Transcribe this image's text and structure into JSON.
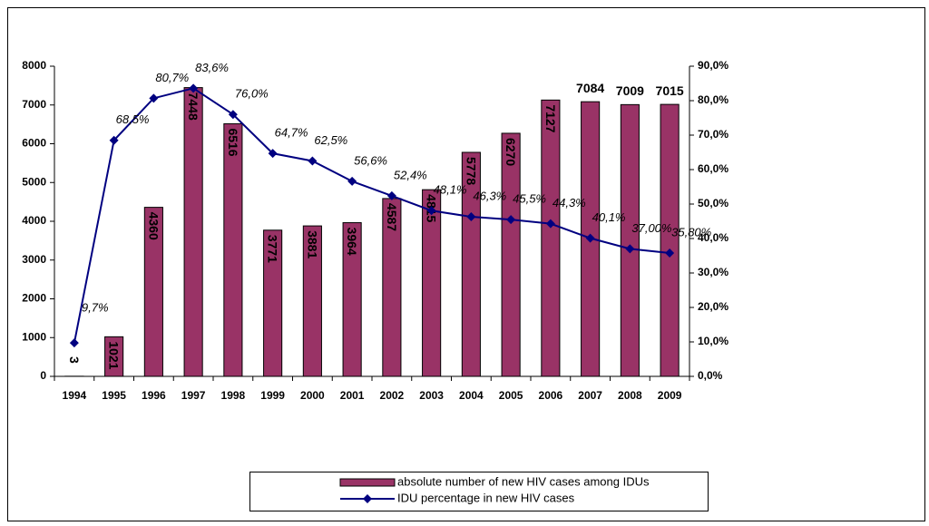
{
  "chart_data": {
    "type": "bar-line",
    "categories": [
      "1994",
      "1995",
      "1996",
      "1997",
      "1998",
      "1999",
      "2000",
      "2001",
      "2002",
      "2003",
      "2004",
      "2005",
      "2006",
      "2007",
      "2008",
      "2009"
    ],
    "series": [
      {
        "name": "absolute number of new HIV cases among IDUs",
        "type": "bar",
        "color": "#993366",
        "values": [
          3,
          1021,
          4360,
          7448,
          6516,
          3771,
          3881,
          3964,
          4587,
          4815,
          5778,
          6270,
          7127,
          7084,
          7009,
          7015
        ]
      },
      {
        "name": "IDU percentage in new HIV cases",
        "type": "line",
        "axis": "y2",
        "color": "#000080",
        "values": [
          9.7,
          68.5,
          80.7,
          83.6,
          76.0,
          64.7,
          62.5,
          56.6,
          52.4,
          48.1,
          46.3,
          45.5,
          44.3,
          40.1,
          37.0,
          35.8
        ],
        "value_labels": [
          "9,7%",
          "68,5%",
          "80,7%",
          "83,6%",
          "76,0%",
          "64,7%",
          "62,5%",
          "56,6%",
          "52,4%",
          "48,1%",
          "46,3%",
          "45,5%",
          "44,3%",
          "40,1%",
          "37,00%",
          "35,80%"
        ]
      }
    ],
    "ylim": [
      0,
      8000
    ],
    "yticks": [
      0,
      1000,
      2000,
      3000,
      4000,
      5000,
      6000,
      7000,
      8000
    ],
    "y2lim": [
      0,
      90
    ],
    "y2ticks": [
      {
        "value": 0,
        "label": "0,0%"
      },
      {
        "value": 10,
        "label": "10,0%"
      },
      {
        "value": 20,
        "label": "20,0%"
      },
      {
        "value": 30,
        "label": "30,0%"
      },
      {
        "value": 40,
        "label": "40,0%"
      },
      {
        "value": 50,
        "label": "50,0%"
      },
      {
        "value": 60,
        "label": "60,0%"
      },
      {
        "value": 70,
        "label": "70,0%"
      },
      {
        "value": 80,
        "label": "80,0%"
      },
      {
        "value": 90,
        "label": "90,0%"
      }
    ],
    "legend": "bottom"
  }
}
